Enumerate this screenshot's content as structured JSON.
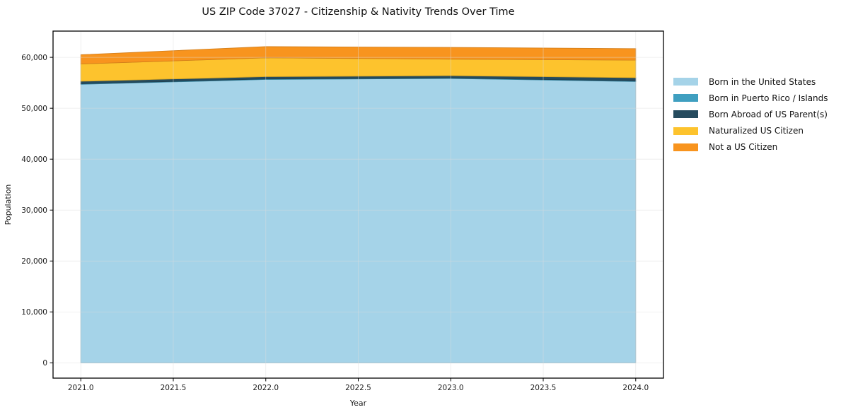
{
  "chart_data": {
    "type": "area",
    "stacked": true,
    "title": "US ZIP Code 37027 - Citizenship & Nativity Trends Over Time",
    "xlabel": "Year",
    "ylabel": "Population",
    "x": [
      2021,
      2022,
      2023,
      2024
    ],
    "series": [
      {
        "name": "Born in the United States",
        "color": "#a5d3e8",
        "values": [
          54700,
          55650,
          55850,
          55250
        ]
      },
      {
        "name": "Born in Puerto Rico / Islands",
        "color": "#3f9fc0",
        "values": [
          100,
          100,
          100,
          100
        ]
      },
      {
        "name": "Born Abroad of US Parent(s)",
        "color": "#254b5e",
        "values": [
          500,
          450,
          450,
          650
        ]
      },
      {
        "name": "Naturalized US Citizen",
        "color": "#fdc32d",
        "values": [
          3400,
          3700,
          3250,
          3450
        ]
      },
      {
        "name": "Not a US Citizen",
        "color": "#f8941e",
        "values": [
          1800,
          2200,
          2300,
          2250
        ]
      }
    ],
    "totals": [
      60500,
      62100,
      61950,
      61700
    ],
    "xticks": [
      2021.0,
      2021.5,
      2022.0,
      2022.5,
      2023.0,
      2023.5,
      2024.0
    ],
    "yticks": [
      0,
      10000,
      20000,
      30000,
      40000,
      50000,
      60000
    ],
    "xlim": [
      2020.85,
      2024.15
    ],
    "ylim": [
      -3000,
      65150
    ],
    "grid": true,
    "grid_color": "#dcdcdc",
    "spine_color": "#000000",
    "legend_position": "right-outside"
  }
}
